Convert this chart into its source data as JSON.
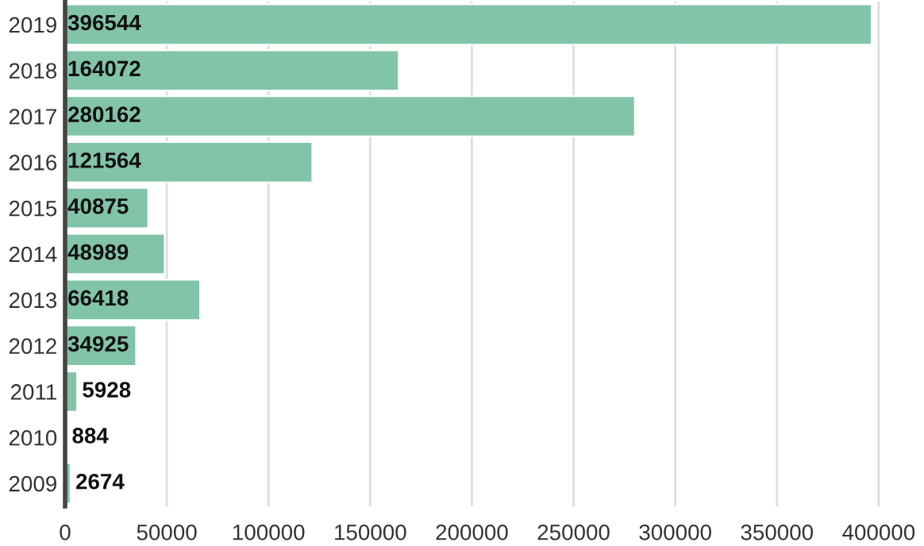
{
  "chart_data": {
    "type": "bar",
    "orientation": "horizontal",
    "categories": [
      "2019",
      "2018",
      "2017",
      "2016",
      "2015",
      "2014",
      "2013",
      "2012",
      "2011",
      "2010",
      "2009"
    ],
    "values": [
      396544,
      164072,
      280162,
      121564,
      40875,
      48989,
      66418,
      34925,
      5928,
      884,
      2674
    ],
    "color": "#82c4a8",
    "xlim": [
      0,
      402000
    ],
    "xticks": [
      0,
      50000,
      100000,
      150000,
      200000,
      250000,
      300000,
      350000,
      400000
    ],
    "grid": "x",
    "data_labels": true
  }
}
